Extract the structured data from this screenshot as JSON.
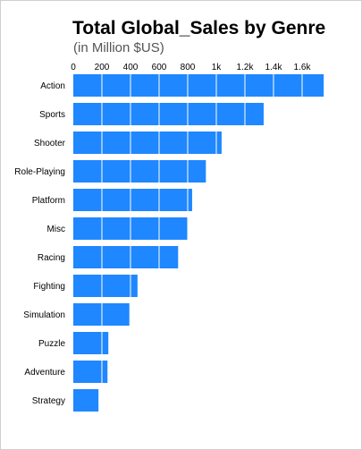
{
  "chart_data": {
    "type": "bar",
    "orientation": "horizontal",
    "title": "Total Global_Sales by Genre",
    "subtitle": "(in Million $US)",
    "categories": [
      "Action",
      "Sports",
      "Shooter",
      "Role-Playing",
      "Platform",
      "Misc",
      "Racing",
      "Fighting",
      "Simulation",
      "Puzzle",
      "Adventure",
      "Strategy"
    ],
    "values": [
      1751,
      1331,
      1037,
      927,
      831,
      803,
      733,
      449,
      392,
      245,
      239,
      176
    ],
    "xlim": [
      0,
      1800
    ],
    "xticks": [
      0,
      200,
      400,
      600,
      800,
      1000,
      1200,
      1400,
      1600
    ],
    "xtick_labels": [
      "0",
      "200",
      "400",
      "600",
      "800",
      "1k",
      "1.2k",
      "1.4k",
      "1.6k"
    ],
    "x_axis_position": "top",
    "grid": true,
    "legend": "none",
    "bar_color": "#1f87ff",
    "grid_color": "#ffffff"
  }
}
